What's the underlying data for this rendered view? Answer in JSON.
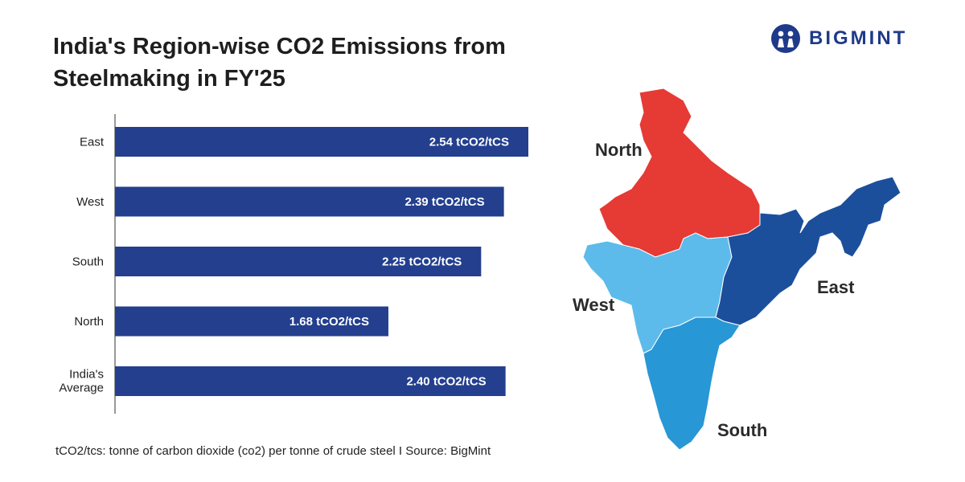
{
  "header": {
    "title_line1": "India's Region-wise CO2 Emissions from",
    "title_line2": "Steelmaking in FY'25",
    "brand": "BIGMINT"
  },
  "chart_data": {
    "type": "bar",
    "orientation": "horizontal",
    "categories": [
      "East",
      "West",
      "South",
      "North",
      "India's Average"
    ],
    "values": [
      2.54,
      2.39,
      2.25,
      1.68,
      2.4
    ],
    "labels": [
      "2.54 tCO2/tCS",
      "2.39 tCO2/tCS",
      "2.25 tCO2/tCS",
      "1.68 tCO2/tCS",
      "2.40 tCO2/tCS"
    ],
    "unit": "tCO2/tCS",
    "xlim": [
      0,
      2.6
    ],
    "bar_color": "#233f8e",
    "label_color": "#ffffff",
    "grid": false,
    "legend": "none"
  },
  "footnote": "tCO2/tcs: tonne of carbon dioxide (co2) per tonne of crude steel  I  Source: BigMint",
  "map": {
    "regions": [
      {
        "name": "North",
        "color": "#e63a35"
      },
      {
        "name": "West",
        "color": "#5cbbea"
      },
      {
        "name": "East",
        "color": "#1b4f9c"
      },
      {
        "name": "South",
        "color": "#2797d6"
      }
    ]
  }
}
